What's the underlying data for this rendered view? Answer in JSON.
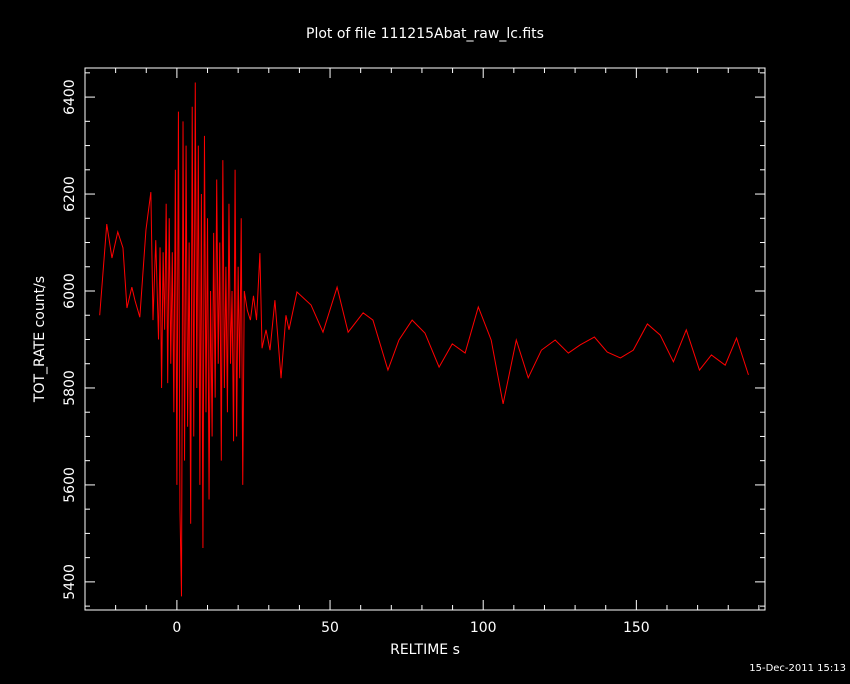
{
  "chart_data": {
    "type": "line",
    "title": "Plot of file 111215Abat_raw_lc.fits",
    "xlabel": "RELTIME  s",
    "ylabel": "TOT_RATE  count/s",
    "timestamp": "15-Dec-2011 15:13",
    "xlim": [
      -30,
      192
    ],
    "ylim": [
      5342,
      6460
    ],
    "xticks": [
      0,
      50,
      100,
      150
    ],
    "yticks": [
      5400,
      5600,
      5800,
      6000,
      6200,
      6400
    ],
    "xminorticks": [
      -20,
      -10,
      10,
      20,
      30,
      40,
      60,
      70,
      80,
      90,
      110,
      120,
      130,
      140,
      160,
      170,
      180,
      190
    ],
    "yminorticks": [
      5350,
      5450,
      5500,
      5550,
      5650,
      5700,
      5750,
      5850,
      5900,
      5950,
      6050,
      6100,
      6150,
      6250,
      6300,
      6350,
      6450
    ],
    "background": "#000000",
    "axis_color": "#ffffff",
    "series": [
      {
        "name": "TOT_RATE",
        "color": "#ff0000",
        "x": [
          -25.2,
          -22.9,
          -21.2,
          -19.3,
          -17.6,
          -16.3,
          -14.7,
          -13.7,
          -12.1,
          -10.1,
          -8.5,
          -7.8,
          -6.9,
          -6,
          -5.5,
          -5,
          -4.5,
          -4,
          -3.5,
          -3,
          -2.5,
          -2,
          -1.5,
          -1,
          -0.5,
          0,
          0.5,
          1,
          1.5,
          2,
          2.5,
          3,
          3.5,
          4,
          4.5,
          5,
          5.5,
          6,
          6.5,
          7,
          7.5,
          8,
          8.5,
          9,
          9.5,
          10,
          10.5,
          11,
          11.5,
          12,
          12.5,
          13,
          13.5,
          14,
          14.5,
          15,
          15.5,
          16,
          16.5,
          17,
          17.5,
          18,
          18.5,
          19,
          19.5,
          20,
          20.5,
          21,
          21.5,
          22,
          23,
          24,
          25,
          26,
          27.1,
          27.8,
          29.1,
          30.4,
          32,
          34,
          35.6,
          36.6,
          39.2,
          43.8,
          47.7,
          52.3,
          55.9,
          60.8,
          64,
          68.9,
          72.5,
          76.8,
          81,
          85.6,
          89.9,
          94.1,
          98.4,
          102.6,
          106.5,
          110.8,
          114.7,
          119,
          123.5,
          127.8,
          131.7,
          136.3,
          140.5,
          144.8,
          149,
          153.6,
          157.8,
          162.1,
          166.3,
          170.6,
          174.5,
          179,
          182.7,
          186.6
        ],
        "values": [
          5950,
          6138,
          6068,
          6122,
          6089,
          5965,
          6008,
          5981,
          5946,
          6126,
          6204,
          5940,
          6105,
          5900,
          6090,
          5800,
          6080,
          5920,
          6180,
          5810,
          6150,
          5850,
          6080,
          5750,
          6250,
          5600,
          6370,
          5550,
          5370,
          6350,
          5650,
          6300,
          5720,
          6100,
          5520,
          6380,
          5700,
          6430,
          5800,
          6300,
          5600,
          6200,
          5470,
          6320,
          5750,
          6150,
          5570,
          6000,
          5700,
          6120,
          5780,
          6230,
          5850,
          6100,
          5650,
          6270,
          5800,
          6050,
          5750,
          6180,
          5850,
          6000,
          5690,
          6250,
          5700,
          6050,
          5820,
          6150,
          5600,
          6000,
          5960,
          5940,
          5990,
          5940,
          6078,
          5882,
          5920,
          5878,
          5981,
          5820,
          5950,
          5920,
          5998,
          5971,
          5915,
          6008,
          5915,
          5955,
          5940,
          5837,
          5899,
          5940,
          5913,
          5843,
          5891,
          5872,
          5967,
          5899,
          5767,
          5899,
          5821,
          5878,
          5899,
          5872,
          5889,
          5905,
          5874,
          5862,
          5878,
          5932,
          5909,
          5854,
          5920,
          5837,
          5868,
          5847,
          5903,
          5827
        ]
      }
    ]
  }
}
